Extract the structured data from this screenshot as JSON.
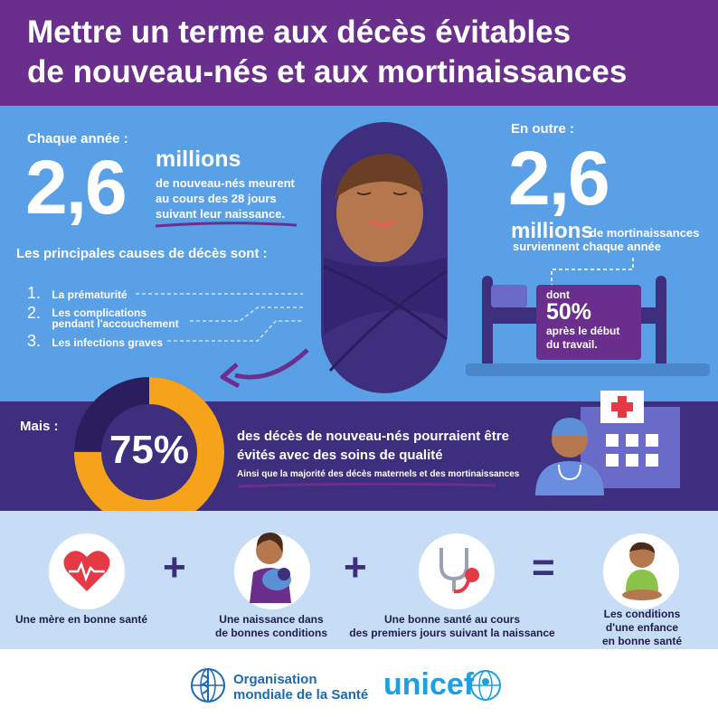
{
  "title": {
    "line1": "Mettre un terme aux décès évitables",
    "line2": "de nouveau-nés et aux mortinaissances"
  },
  "left_stat": {
    "intro": "Chaque année :",
    "number": "2,6",
    "unit": "millions",
    "line1": "de nouveau-nés meurent",
    "line2": "au cours des 28 jours",
    "line3": "suivant leur naissance."
  },
  "causes": {
    "heading": "Les principales causes de décès sont :",
    "items": [
      {
        "num": "1.",
        "line1": "La prématurité",
        "line2": ""
      },
      {
        "num": "2.",
        "line1": "Les complications",
        "line2": "pendant l'accouchement"
      },
      {
        "num": "3.",
        "line1": "Les infections graves",
        "line2": ""
      }
    ]
  },
  "right_stat": {
    "intro": "En outre :",
    "number": "2,6",
    "unit": "millions",
    "line1": "de mortinaissances",
    "line2": "surviennent chaque année",
    "box_dont": "dont",
    "box_pct": "50%",
    "box_line1": "après le début",
    "box_line2": "du travail."
  },
  "mais": {
    "label": "Mais :",
    "percent": "75%",
    "percent_value": 75,
    "line1": "des décès de nouveau-nés pourraient être",
    "line2": "évités avec des soins de qualité",
    "sub": "Ainsi que la majorité des décès maternels et des mortinaissances"
  },
  "equation": {
    "item1": {
      "line1": "Une mère en bonne santé",
      "line2": ""
    },
    "item2": {
      "line1": "Une naissance dans",
      "line2": "de bonnes conditions"
    },
    "item3": {
      "line1": "Une bonne santé au cours",
      "line2": "des premiers jours suivant la naissance"
    },
    "item4": {
      "line1": "Les conditions",
      "line2": "d'une enfance",
      "line3": "en bonne santé"
    },
    "plus": "+",
    "equals": "="
  },
  "footer": {
    "who_line1": "Organisation",
    "who_line2": "mondiale de la Santé",
    "unicef": "unicef"
  },
  "colors": {
    "purple": "#6a2f8c",
    "blue": "#5aa0e6",
    "dark": "#3d2f7e",
    "orange": "#f7a21b",
    "light": "#c7ddf6"
  }
}
